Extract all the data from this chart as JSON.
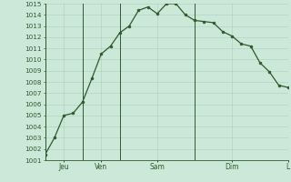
{
  "x_values": [
    0,
    1,
    2,
    3,
    4,
    5,
    6,
    7,
    8,
    9,
    10,
    11,
    12,
    13,
    14,
    15,
    16,
    17,
    18,
    19,
    20,
    21,
    22,
    23,
    24,
    25,
    26
  ],
  "y_values": [
    1001.5,
    1003.0,
    1005.0,
    1005.2,
    1006.2,
    1008.3,
    1010.5,
    1011.2,
    1012.4,
    1013.0,
    1014.4,
    1014.7,
    1014.1,
    1015.0,
    1015.0,
    1014.0,
    1013.5,
    1013.4,
    1013.3,
    1012.5,
    1012.1,
    1011.4,
    1011.2,
    1009.7,
    1008.9,
    1007.7,
    1007.5
  ],
  "day_line_positions": [
    0,
    4,
    8,
    16,
    26
  ],
  "x_tick_positions": [
    2,
    6,
    12,
    20,
    26
  ],
  "x_tick_labels": [
    "Jeu",
    "Ven",
    "Sam",
    "Dim",
    "L"
  ],
  "y_min": 1001,
  "y_max": 1015,
  "line_color": "#2d5a2d",
  "marker_color": "#2d5a2d",
  "bg_color": "#cce8d8",
  "grid_color": "#aacfbc",
  "day_line_color": "#2d5a2d",
  "tick_color": "#2d5a2d"
}
